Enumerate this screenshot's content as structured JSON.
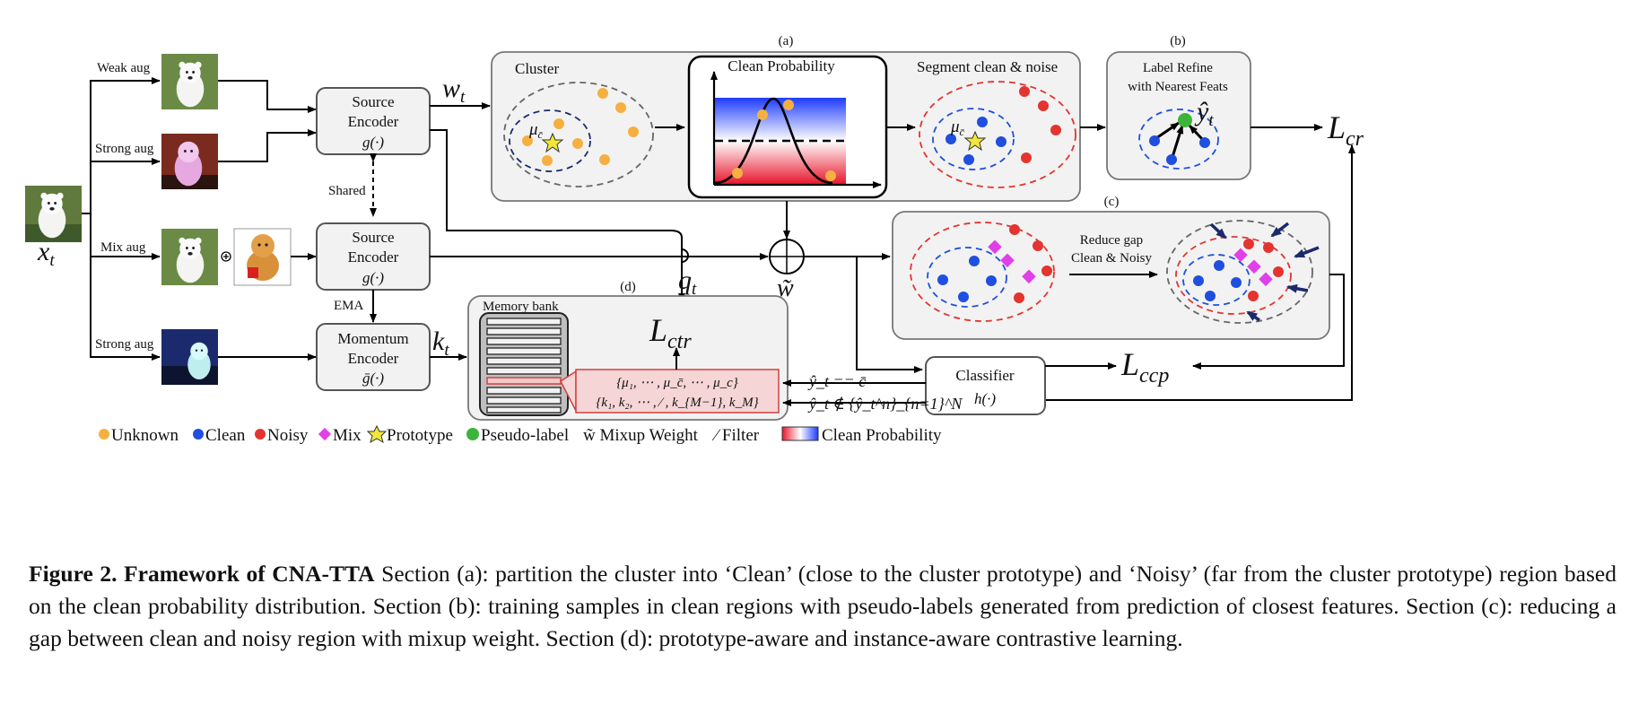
{
  "figure": {
    "input": {
      "label": "x_t"
    },
    "augmentations": {
      "weak": "Weak aug",
      "strong": "Strong aug",
      "mix": "Mix aug",
      "strong2": "Strong aug"
    },
    "encoders": {
      "source1": {
        "line1": "Source",
        "line2": "Encoder",
        "fn": "g(·)"
      },
      "source2": {
        "line1": "Source",
        "line2": "Encoder",
        "fn": "g(·)"
      },
      "momentum": {
        "line1": "Momentum",
        "line2": "Encoder",
        "fn": "ḡ(·)"
      },
      "shared": "Shared",
      "ema": "EMA"
    },
    "variables": {
      "w": "w",
      "w_sub": "t",
      "q": "q",
      "q_sub": "t",
      "k": "k",
      "k_sub": "t",
      "wtilde": "w̃"
    },
    "section_a": {
      "tag": "(a)",
      "cluster": "Cluster",
      "mu": "μ",
      "mu_sub": "c̄",
      "clean_prob": "Clean Probability",
      "segment": "Segment clean & noise"
    },
    "section_b": {
      "tag": "(b)",
      "line1": "Label Refine",
      "line2": "with Nearest Feats",
      "yhat": "ŷ",
      "yhat_sub": "t"
    },
    "section_c": {
      "tag": "(c)",
      "line1": "Reduce gap",
      "line2": "Clean & Noisy"
    },
    "section_d": {
      "tag": "(d)",
      "memory": "Memory bank",
      "proto_row": "{μ₁, ⋯ , μ_c̄, ⋯ , μ_c}",
      "inst_row": "{k₁, k₂, ⋯ , ⁄ , k_{M−1}, k_M}"
    },
    "classifier": {
      "line1": "Classifier",
      "fn": "h(·)"
    },
    "losses": {
      "L": "L",
      "cr": "cr",
      "ctr": "ctr",
      "ccp": "ccp"
    },
    "conditions": {
      "eq": "ŷ_t == c̄",
      "notin": "ŷ_t ∉ {ŷ_t^n}_{n=1}^N"
    },
    "legend": {
      "unknown": "Unknown",
      "clean": "Clean",
      "noisy": "Noisy",
      "mix": "Mix",
      "prototype": "Prototype",
      "pseudo": "Pseudo-label",
      "mixup": "w̃ Mixup Weight",
      "filter": "⁄ Filter",
      "cleanprob": "Clean Probability"
    },
    "colors": {
      "unknown": "#f5b041",
      "clean": "#1f4fe0",
      "noisy": "#e3342f",
      "mix": "#e040e8",
      "prototype": "#f2e63a",
      "pseudo": "#3cb43c",
      "panel": "#f2f2f2"
    }
  },
  "caption": {
    "label": "Figure 2.",
    "bold": "Framework of CNA-TTA",
    "text": " Section (a): partition the cluster into ‘Clean’ (close to the cluster prototype) and ‘Noisy’ (far from the cluster prototype) region based on the clean probability distribution. Section (b): training samples in clean regions with pseudo-labels generated from prediction of closest features. Section (c): reducing a gap between clean and noisy region with mixup weight. Section (d): prototype-aware and instance-aware contrastive learning."
  }
}
